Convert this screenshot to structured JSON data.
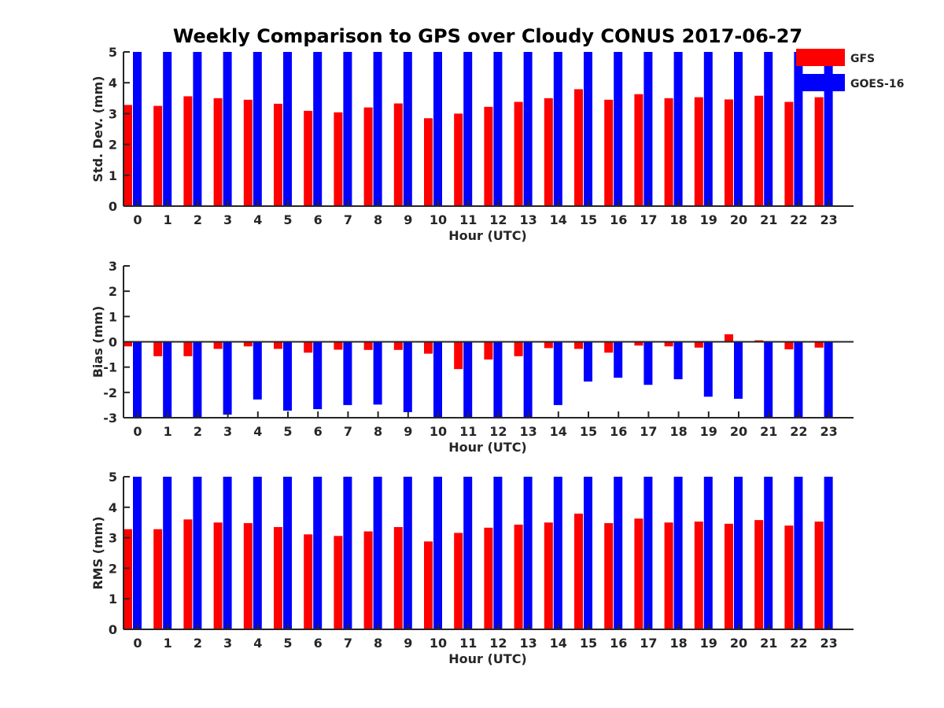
{
  "chart_data": {
    "title": "Weekly Comparison to GPS over Cloudy CONUS 2017-06-27",
    "colors": {
      "GFS": "#ff0000",
      "GOES-16": "#0000ff"
    },
    "legend": {
      "placement": "top-right",
      "entries": [
        {
          "name": "GFS",
          "color": "#ff0000"
        },
        {
          "name": "GOES-16",
          "color": "#0000ff"
        }
      ]
    },
    "panels": [
      {
        "id": "std",
        "type": "bar",
        "xlabel": "Hour (UTC)",
        "ylabel": "Std. Dev. (mm)",
        "ylim": [
          0,
          5
        ],
        "yticks": [
          0,
          1,
          2,
          3,
          4,
          5
        ],
        "x": [
          0,
          1,
          2,
          3,
          4,
          5,
          6,
          7,
          8,
          9,
          10,
          11,
          12,
          13,
          14,
          15,
          16,
          17,
          18,
          19,
          20,
          21,
          22,
          23
        ],
        "zero_line": false,
        "series": [
          {
            "name": "GFS",
            "values": [
              3.28,
              3.25,
              3.56,
              3.5,
              3.45,
              3.32,
              3.09,
              3.04,
              3.2,
              3.33,
              2.85,
              3.0,
              3.22,
              3.38,
              3.5,
              3.79,
              3.45,
              3.63,
              3.5,
              3.53,
              3.46,
              3.58,
              3.38,
              3.53
            ]
          },
          {
            "name": "GOES-16",
            "values": [
              5,
              5,
              5,
              5,
              5,
              5,
              5,
              5,
              5,
              5,
              5,
              5,
              5,
              5,
              5,
              5,
              5,
              5,
              5,
              5,
              5,
              5,
              5,
              5
            ]
          }
        ]
      },
      {
        "id": "bias",
        "type": "bar",
        "xlabel": "Hour (UTC)",
        "ylabel": "Bias (mm)",
        "ylim": [
          -3,
          3
        ],
        "yticks": [
          -3,
          -2,
          -1,
          0,
          1,
          2,
          3
        ],
        "x": [
          0,
          1,
          2,
          3,
          4,
          5,
          6,
          7,
          8,
          9,
          10,
          11,
          12,
          13,
          14,
          15,
          16,
          17,
          18,
          19,
          20,
          21,
          22,
          23
        ],
        "zero_line": true,
        "series": [
          {
            "name": "GFS",
            "values": [
              -0.18,
              -0.57,
              -0.57,
              -0.28,
              -0.18,
              -0.28,
              -0.43,
              -0.31,
              -0.32,
              -0.32,
              -0.47,
              -1.08,
              -0.7,
              -0.57,
              -0.25,
              -0.28,
              -0.43,
              -0.15,
              -0.18,
              -0.23,
              0.3,
              0.06,
              -0.3,
              -0.23
            ]
          },
          {
            "name": "GOES-16",
            "values": [
              -3.0,
              -3.0,
              -3.0,
              -2.88,
              -2.28,
              -2.72,
              -2.66,
              -2.5,
              -2.48,
              -2.78,
              -3.0,
              -3.0,
              -3.0,
              -3.0,
              -2.5,
              -1.57,
              -1.42,
              -1.7,
              -1.48,
              -2.17,
              -2.25,
              -3.0,
              -3.0,
              -3.0
            ]
          }
        ]
      },
      {
        "id": "rms",
        "type": "bar",
        "xlabel": "Hour (UTC)",
        "ylabel": "RMS (mm)",
        "ylim": [
          0,
          5
        ],
        "yticks": [
          0,
          1,
          2,
          3,
          4,
          5
        ],
        "x": [
          0,
          1,
          2,
          3,
          4,
          5,
          6,
          7,
          8,
          9,
          10,
          11,
          12,
          13,
          14,
          15,
          16,
          17,
          18,
          19,
          20,
          21,
          22,
          23
        ],
        "zero_line": false,
        "series": [
          {
            "name": "GFS",
            "values": [
              3.28,
              3.28,
              3.6,
              3.5,
              3.48,
              3.35,
              3.11,
              3.06,
              3.21,
              3.35,
              2.88,
              3.16,
              3.33,
              3.43,
              3.5,
              3.79,
              3.48,
              3.63,
              3.5,
              3.53,
              3.46,
              3.58,
              3.4,
              3.53
            ]
          },
          {
            "name": "GOES-16",
            "values": [
              5,
              5,
              5,
              5,
              5,
              5,
              5,
              5,
              5,
              5,
              5,
              5,
              5,
              5,
              5,
              5,
              5,
              5,
              5,
              5,
              5,
              5,
              5,
              5
            ]
          }
        ]
      }
    ]
  }
}
